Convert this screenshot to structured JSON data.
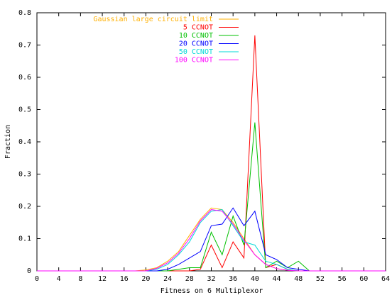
{
  "chart_data": {
    "type": "line",
    "xlabel": "Fitness on 6 Multiplexor",
    "ylabel": "Fraction",
    "x": [
      0,
      2,
      4,
      6,
      8,
      10,
      12,
      14,
      16,
      18,
      20,
      22,
      24,
      26,
      28,
      30,
      32,
      34,
      36,
      38,
      40,
      42,
      44,
      46,
      48,
      50,
      52,
      54,
      56,
      58,
      60,
      62,
      64
    ],
    "xlim": [
      0,
      64
    ],
    "xticks": [
      0,
      4,
      8,
      12,
      16,
      20,
      24,
      28,
      32,
      36,
      40,
      44,
      48,
      52,
      56,
      60,
      64
    ],
    "ylim": [
      0,
      0.8
    ],
    "yticks": [
      0,
      0.1,
      0.2,
      0.3,
      0.4,
      0.5,
      0.6,
      0.7,
      0.8
    ],
    "legend": "top-left",
    "series": [
      {
        "name": "Gaussian large circuit limit",
        "color": "#ffb000",
        "values": [
          0,
          0,
          0,
          0,
          0,
          0,
          0,
          0,
          0,
          0,
          0.003,
          0.01,
          0.03,
          0.06,
          0.11,
          0.16,
          0.195,
          0.19,
          0.15,
          0.1,
          0.05,
          0.02,
          0.007,
          0.002,
          0,
          0,
          0,
          0,
          0,
          0,
          0,
          0,
          0
        ]
      },
      {
        "name": "5 CCNOT",
        "color": "#ff0000",
        "values": [
          0,
          0,
          0,
          0,
          0,
          0,
          0,
          0,
          0,
          0,
          0,
          0,
          0,
          0,
          0,
          0.005,
          0.08,
          0.01,
          0.09,
          0.04,
          0.73,
          0.01,
          0.02,
          0.005,
          0,
          0,
          0,
          0,
          0,
          0,
          0,
          0,
          0
        ]
      },
      {
        "name": "10 CCNOT",
        "color": "#00c000",
        "values": [
          0,
          0,
          0,
          0,
          0,
          0,
          0,
          0,
          0,
          0,
          0,
          0,
          0,
          0.005,
          0.01,
          0.01,
          0.12,
          0.05,
          0.17,
          0.08,
          0.46,
          0.01,
          0.03,
          0.01,
          0.03,
          0,
          0,
          0,
          0,
          0,
          0,
          0,
          0
        ]
      },
      {
        "name": "20 CCNOT",
        "color": "#0000ff",
        "values": [
          0,
          0,
          0,
          0,
          0,
          0,
          0,
          0,
          0,
          0,
          0,
          0,
          0.005,
          0.02,
          0.04,
          0.06,
          0.14,
          0.145,
          0.195,
          0.14,
          0.185,
          0.05,
          0.035,
          0.01,
          0.005,
          0,
          0,
          0,
          0,
          0,
          0,
          0,
          0
        ]
      },
      {
        "name": "50 CCNOT",
        "color": "#00d8d8",
        "values": [
          0,
          0,
          0,
          0,
          0,
          0,
          0,
          0,
          0,
          0,
          0,
          0.005,
          0.02,
          0.05,
          0.09,
          0.15,
          0.185,
          0.19,
          0.14,
          0.09,
          0.08,
          0.03,
          0.02,
          0.005,
          0,
          0,
          0,
          0,
          0,
          0,
          0,
          0,
          0
        ]
      },
      {
        "name": "100 CCNOT",
        "color": "#ff00ff",
        "values": [
          0,
          0,
          0,
          0,
          0,
          0,
          0,
          0,
          0,
          0,
          0,
          0.008,
          0.025,
          0.055,
          0.1,
          0.155,
          0.19,
          0.185,
          0.145,
          0.095,
          0.05,
          0.02,
          0.007,
          0.002,
          0,
          0,
          0,
          0,
          0,
          0,
          0,
          0,
          0
        ]
      }
    ]
  }
}
